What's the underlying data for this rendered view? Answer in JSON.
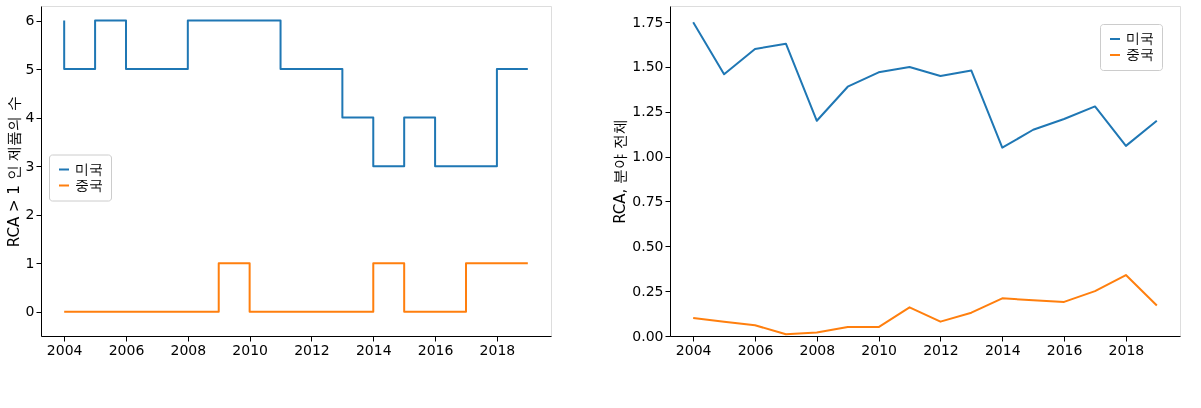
{
  "chart_data": [
    {
      "type": "step",
      "ylabel": "RCA > 1 인 제품의 수",
      "x": [
        2004,
        2005,
        2006,
        2007,
        2008,
        2009,
        2010,
        2011,
        2012,
        2013,
        2014,
        2015,
        2016,
        2017,
        2018,
        2019
      ],
      "xlim": [
        2003.25,
        2019.75
      ],
      "xticks": [
        2004,
        2006,
        2008,
        2010,
        2012,
        2014,
        2016,
        2018
      ],
      "ylim": [
        -0.5,
        6.3
      ],
      "yticks": [
        0,
        1,
        2,
        3,
        4,
        5,
        6
      ],
      "grid": false,
      "legend": "left",
      "series": [
        {
          "name": "미국",
          "color": "#1f77b4",
          "values": [
            6,
            5,
            6,
            5,
            5,
            6,
            6,
            6,
            5,
            5,
            4,
            3,
            4,
            3,
            3,
            5
          ]
        },
        {
          "name": "중국",
          "color": "#ff7f0e",
          "values": [
            0,
            0,
            0,
            0,
            0,
            0,
            1,
            0,
            0,
            0,
            0,
            1,
            0,
            0,
            1,
            1
          ]
        }
      ]
    },
    {
      "type": "line",
      "ylabel": "RCA, 분야 전체",
      "x": [
        2004,
        2005,
        2006,
        2007,
        2008,
        2009,
        2010,
        2011,
        2012,
        2013,
        2014,
        2015,
        2016,
        2017,
        2018,
        2019
      ],
      "xlim": [
        2003.25,
        2019.75
      ],
      "xticks": [
        2004,
        2006,
        2008,
        2010,
        2012,
        2014,
        2016,
        2018
      ],
      "ylim": [
        0,
        1.84
      ],
      "yticks": [
        {
          "value": 0,
          "label": "0.00"
        },
        {
          "value": 0.25,
          "label": "0.25"
        },
        {
          "value": 0.5,
          "label": "0.50"
        },
        {
          "value": 0.75,
          "label": "0.75"
        },
        {
          "value": 1,
          "label": "1.00"
        },
        {
          "value": 1.25,
          "label": "1.25"
        },
        {
          "value": 1.5,
          "label": "1.50"
        },
        {
          "value": 1.75,
          "label": "1.75"
        }
      ],
      "grid": false,
      "legend": "top right",
      "series": [
        {
          "name": "미국",
          "color": "#1f77b4",
          "values": [
            1.75,
            1.46,
            1.6,
            1.63,
            1.2,
            1.39,
            1.47,
            1.5,
            1.45,
            1.48,
            1.05,
            1.15,
            1.21,
            1.28,
            1.06,
            1.2
          ]
        },
        {
          "name": "중국",
          "color": "#ff7f0e",
          "values": [
            0.1,
            0.08,
            0.06,
            0.01,
            0.02,
            0.05,
            0.05,
            0.16,
            0.08,
            0.13,
            0.21,
            0.2,
            0.19,
            0.25,
            0.34,
            0.17
          ]
        }
      ]
    }
  ]
}
